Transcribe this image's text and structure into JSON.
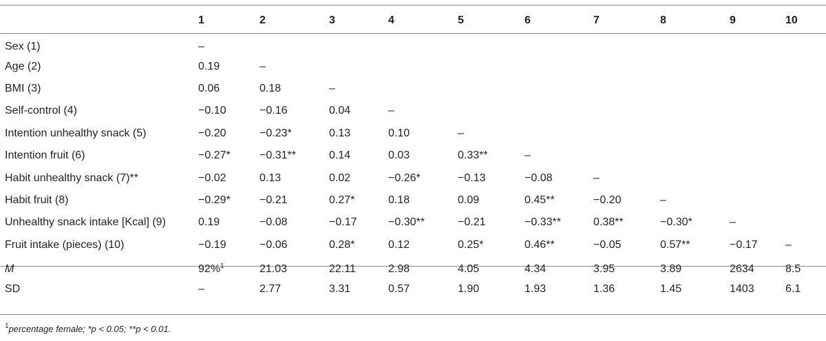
{
  "table": {
    "columns": [
      "",
      "1",
      "2",
      "3",
      "4",
      "5",
      "6",
      "7",
      "8",
      "9",
      "10"
    ],
    "rows": [
      {
        "label": "Sex (1)",
        "cells": [
          "–",
          "",
          "",
          "",
          "",
          "",
          "",
          "",
          "",
          ""
        ]
      },
      {
        "label": "Age (2)",
        "cells": [
          "0.19",
          "–",
          "",
          "",
          "",
          "",
          "",
          "",
          "",
          ""
        ]
      },
      {
        "label": "BMI (3)",
        "cells": [
          "0.06",
          "0.18",
          "–",
          "",
          "",
          "",
          "",
          "",
          "",
          ""
        ]
      },
      {
        "label": "Self-control (4)",
        "cells": [
          "−0.10",
          "−0.16",
          "0.04",
          "–",
          "",
          "",
          "",
          "",
          "",
          ""
        ]
      },
      {
        "label": "Intention unhealthy snack (5)",
        "cells": [
          "−0.20",
          "−0.23*",
          "0.13",
          "0.10",
          "–",
          "",
          "",
          "",
          "",
          ""
        ]
      },
      {
        "label": "Intention fruit (6)",
        "cells": [
          "−0.27*",
          "−0.31**",
          "0.14",
          "0.03",
          "0.33**",
          "–",
          "",
          "",
          "",
          ""
        ]
      },
      {
        "label": "Habit unhealthy snack (7)**",
        "cells": [
          "−0.02",
          "0.13",
          "0.02",
          "−0.26*",
          "−0.13",
          "−0.08",
          "–",
          "",
          "",
          ""
        ]
      },
      {
        "label": "Habit fruit (8)",
        "cells": [
          "−0.29*",
          "−0.21",
          "0.27*",
          "0.18",
          "0.09",
          "0.45**",
          "−0.20",
          "–",
          "",
          ""
        ]
      },
      {
        "label": "Unhealthy snack intake [Kcal] (9)",
        "cells": [
          "0.19",
          "−0.08",
          "−0.17",
          "−0.30**",
          "−0.21",
          "−0.33**",
          "0.38**",
          "−0.30*",
          "–",
          ""
        ]
      },
      {
        "label": "Fruit intake (pieces) (10)",
        "cells": [
          "−0.19",
          "−0.06",
          "0.28*",
          "0.12",
          "0.25*",
          "0.46**",
          "−0.05",
          "0.57**",
          "−0.17",
          "–"
        ]
      }
    ],
    "stats": [
      {
        "label": "M",
        "italic": true,
        "cells": [
          "92%",
          "21.03",
          "22.11",
          "2.98",
          "4.05",
          "4.34",
          "3.95",
          "3.89",
          "2634",
          "8.5"
        ],
        "sup_first": "1"
      },
      {
        "label": "SD",
        "italic": false,
        "cells": [
          "–",
          "2.77",
          "3.31",
          "0.57",
          "1.90",
          "1.93",
          "1.36",
          "1.45",
          "1403",
          "6.1"
        ]
      }
    ]
  },
  "footnote": {
    "marker": "1",
    "text": "percentage female; *p < 0.05; **p < 0.01."
  }
}
